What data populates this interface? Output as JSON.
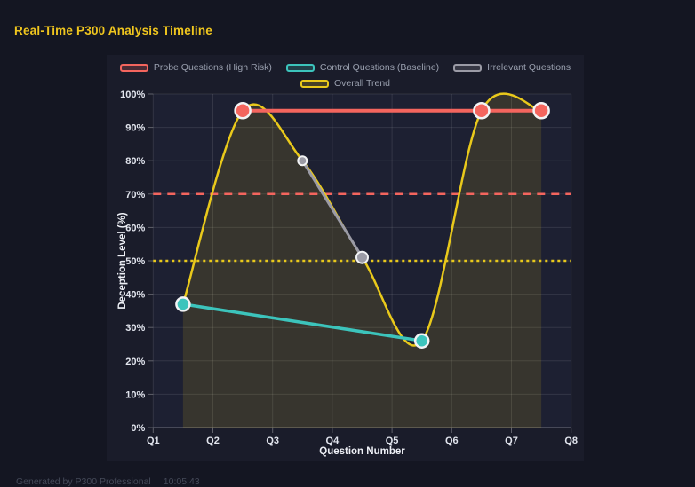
{
  "page": {
    "title": "Real-Time P300 Analysis Timeline",
    "footer": {
      "generated_by": "Generated by P300 Professional",
      "time": "10:05:43"
    }
  },
  "colors": {
    "page_bg": "#141622",
    "panel_bg": "#1a1c2a",
    "plot_bg": "#1d2032",
    "grid": "rgba(255,255,255,0.10)",
    "axis_line": "rgba(255,255,255,0.30)",
    "tick_mark": "rgba(255,255,255,0.30)",
    "tick_text": "#e2e5ee",
    "axis_title_text": "#eef0f6",
    "legend_text": "#9aa0af",
    "title_accent": "#f0c61e",
    "footer_text": "#454a59",
    "point_border": "#f2f3f5"
  },
  "chart_data": {
    "type": "line",
    "title": "Real-Time P300 Analysis Timeline",
    "xlabel": "Question Number",
    "ylabel": "Deception Level (%)",
    "x_ticks": [
      "Q1",
      "Q2",
      "Q3",
      "Q4",
      "Q5",
      "Q6",
      "Q7",
      "Q8"
    ],
    "x_range": [
      1,
      8
    ],
    "y_ticks": [
      "0%",
      "10%",
      "20%",
      "30%",
      "40%",
      "50%",
      "60%",
      "70%",
      "80%",
      "90%",
      "100%"
    ],
    "y_range": [
      0,
      100
    ],
    "grid": true,
    "legend_position": "top-center",
    "series": [
      {
        "name": "Probe Questions (High Risk)",
        "color": "#f4655e",
        "points": [
          [
            2.5,
            95
          ],
          [
            6.5,
            95
          ],
          [
            7.5,
            95
          ]
        ],
        "point_radii": [
          8.5,
          8.5,
          8.5
        ],
        "line_width": 4
      },
      {
        "name": "Control Questions (Baseline)",
        "color": "#3cc4bc",
        "points": [
          [
            1.5,
            37
          ],
          [
            5.5,
            26
          ]
        ],
        "point_radii": [
          7.5,
          7.5
        ],
        "line_width": 3.5
      },
      {
        "name": "Irrelevant Questions",
        "color": "#9b9ba6",
        "points": [
          [
            3.5,
            80
          ],
          [
            4.5,
            51
          ]
        ],
        "point_radii": [
          5,
          6.5
        ],
        "line_width": 3
      }
    ],
    "trend": {
      "name": "Overall Trend",
      "color": "#e9c91b",
      "points": [
        [
          1.5,
          37
        ],
        [
          2.5,
          95
        ],
        [
          3.5,
          80
        ],
        [
          4.5,
          51
        ],
        [
          5.5,
          26
        ],
        [
          6.5,
          95
        ],
        [
          7.5,
          95
        ]
      ],
      "smooth": true,
      "line_width": 2.5,
      "area_fill": "rgba(233,201,27,0.13)"
    },
    "thresholds": [
      {
        "value": 70,
        "color": "#f4655e",
        "dash": [
          9,
          7
        ],
        "width": 2.5
      },
      {
        "value": 50,
        "color": "#e9c91b",
        "dash": [
          3,
          4
        ],
        "width": 2.5
      }
    ]
  }
}
